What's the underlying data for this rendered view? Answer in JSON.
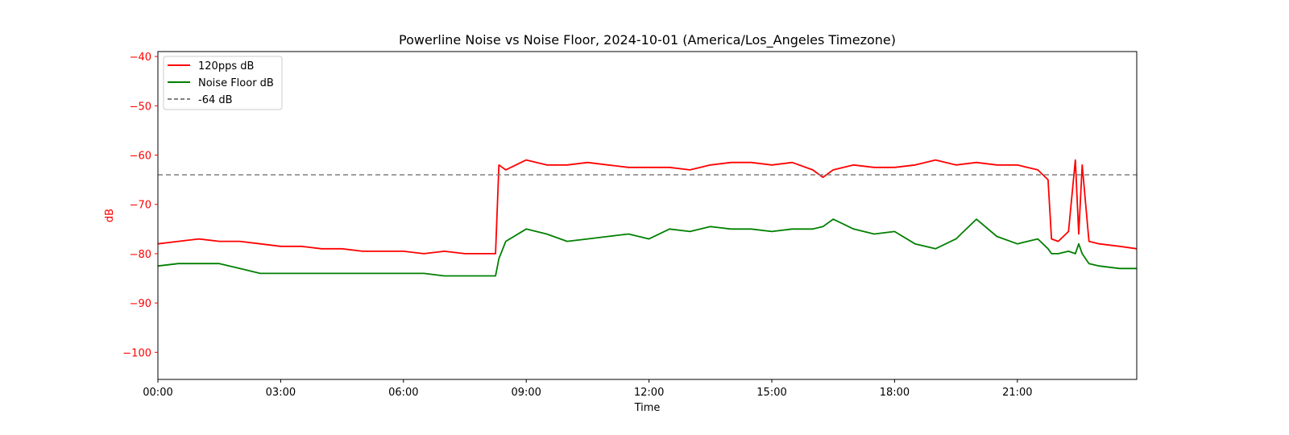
{
  "chart_data": {
    "type": "line",
    "title": "Powerline Noise vs Noise Floor, 2024-10-01 (America/Los_Angeles Timezone)",
    "xlabel": "Time",
    "ylabel": "dB",
    "xlim": [
      "00:00",
      "23:55"
    ],
    "ylim": [
      -105.5,
      -39
    ],
    "x_ticks": [
      "00:00",
      "03:00",
      "06:00",
      "09:00",
      "12:00",
      "15:00",
      "18:00",
      "21:00"
    ],
    "y_ticks": [
      -40,
      -50,
      -60,
      -70,
      -80,
      -90,
      -100
    ],
    "grid": false,
    "legend_position": "top-left",
    "colors": {
      "ylabel": "#ff0000",
      "y_ticks": "#ff0000",
      "series_120pps": "#ff0000",
      "series_noise_floor": "#008000",
      "reference_line": "#808080"
    },
    "reference_line": {
      "name": "-64 dB",
      "y": -64,
      "style": "dashed"
    },
    "series": [
      {
        "name": "120pps dB",
        "color": "#ff0000",
        "x": [
          "00:00",
          "00:30",
          "01:00",
          "01:30",
          "02:00",
          "02:30",
          "03:00",
          "03:30",
          "04:00",
          "04:30",
          "05:00",
          "05:30",
          "06:00",
          "06:30",
          "07:00",
          "07:30",
          "08:00",
          "08:15",
          "08:20",
          "08:30",
          "09:00",
          "09:30",
          "10:00",
          "10:30",
          "11:00",
          "11:30",
          "12:00",
          "12:30",
          "13:00",
          "13:30",
          "14:00",
          "14:30",
          "15:00",
          "15:30",
          "16:00",
          "16:15",
          "16:30",
          "17:00",
          "17:30",
          "18:00",
          "18:30",
          "19:00",
          "19:30",
          "20:00",
          "20:30",
          "21:00",
          "21:30",
          "21:45",
          "21:50",
          "22:00",
          "22:15",
          "22:25",
          "22:30",
          "22:35",
          "22:45",
          "23:00",
          "23:30",
          "23:55"
        ],
        "y": [
          -78,
          -77.5,
          -77,
          -77.5,
          -77.5,
          -78,
          -78.5,
          -78.5,
          -79,
          -79,
          -79.5,
          -79.5,
          -79.5,
          -80,
          -79.5,
          -80,
          -80,
          -80,
          -62,
          -63,
          -61,
          -62,
          -62,
          -61.5,
          -62,
          -62.5,
          -62.5,
          -62.5,
          -63,
          -62,
          -61.5,
          -61.5,
          -62,
          -61.5,
          -63,
          -64.5,
          -63,
          -62,
          -62.5,
          -62.5,
          -62,
          -61,
          -62,
          -61.5,
          -62,
          -62,
          -63,
          -65,
          -77,
          -77.5,
          -75.5,
          -61,
          -76,
          -62,
          -77.5,
          -78,
          -78.5,
          -79
        ]
      },
      {
        "name": "Noise Floor dB",
        "color": "#008000",
        "x": [
          "00:00",
          "00:30",
          "01:00",
          "01:30",
          "02:00",
          "02:30",
          "03:00",
          "03:30",
          "04:00",
          "04:30",
          "05:00",
          "05:30",
          "06:00",
          "06:30",
          "07:00",
          "07:30",
          "08:00",
          "08:15",
          "08:20",
          "08:30",
          "09:00",
          "09:30",
          "10:00",
          "10:30",
          "11:00",
          "11:30",
          "12:00",
          "12:30",
          "13:00",
          "13:30",
          "14:00",
          "14:30",
          "15:00",
          "15:30",
          "16:00",
          "16:15",
          "16:30",
          "17:00",
          "17:30",
          "18:00",
          "18:30",
          "19:00",
          "19:30",
          "20:00",
          "20:30",
          "21:00",
          "21:30",
          "21:45",
          "21:50",
          "22:00",
          "22:15",
          "22:25",
          "22:30",
          "22:35",
          "22:45",
          "23:00",
          "23:30",
          "23:55"
        ],
        "y": [
          -82.5,
          -82,
          -82,
          -82,
          -83,
          -84,
          -84,
          -84,
          -84,
          -84,
          -84,
          -84,
          -84,
          -84,
          -84.5,
          -84.5,
          -84.5,
          -84.5,
          -81,
          -77.5,
          -75,
          -76,
          -77.5,
          -77,
          -76.5,
          -76,
          -77,
          -75,
          -75.5,
          -74.5,
          -75,
          -75,
          -75.5,
          -75,
          -75,
          -74.5,
          -73,
          -75,
          -76,
          -75.5,
          -78,
          -79,
          -77,
          -73,
          -76.5,
          -78,
          -77,
          -79,
          -80,
          -80,
          -79.5,
          -80,
          -78,
          -80,
          -82,
          -82.5,
          -83,
          -83
        ]
      }
    ]
  }
}
